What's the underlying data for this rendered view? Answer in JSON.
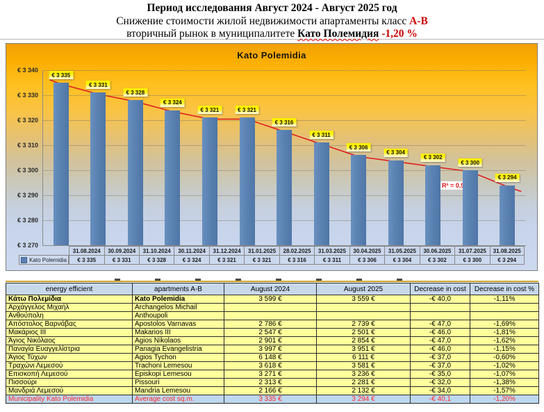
{
  "header": {
    "line1": "Период исследования Август 2024 - Август 2025 год",
    "line2_prefix": "Снижение стоимости жилой недвижимости апартаменты класс ",
    "line2_highlight": "А-В",
    "line3_prefix": "вторичный рынок в муниципалитете ",
    "line3_municipality": "Като Полемидия",
    "line3_change": " -1,20 %"
  },
  "chart_data": {
    "type": "bar",
    "title": "Kato Polemidia",
    "series_name": "Kato Polemidia",
    "categories": [
      "31.08.2024",
      "30.09.2024",
      "31.10.2024",
      "30.11.2024",
      "31.12.2024",
      "31.01.2025",
      "28.02.2025",
      "31.03.2025",
      "30.04.2025",
      "31.05.2025",
      "30.06.2025",
      "31.07.2025",
      "31.08.2025"
    ],
    "values": [
      3335,
      3331,
      3328,
      3324,
      3321,
      3321,
      3316,
      3311,
      3306,
      3304,
      3302,
      3300,
      3294
    ],
    "value_labels": [
      "€ 3 335",
      "€ 3 331",
      "€ 3 328",
      "€ 3 324",
      "€ 3 321",
      "€ 3 321",
      "€ 3 316",
      "€ 3 311",
      "€ 3 306",
      "€ 3 304",
      "€ 3 302",
      "€ 3 300",
      "€ 3 294"
    ],
    "ylim": [
      3270,
      3340
    ],
    "ytick_step": 10,
    "ytick_labels": [
      "€ 3 340",
      "€ 3 330",
      "€ 3 320",
      "€ 3 310",
      "€ 3 300",
      "€ 3 290",
      "€ 3 280",
      "€ 3 270"
    ],
    "grid": true,
    "legend_position": "data-table-left",
    "trendline_r2": "R² = 0,9936",
    "colors": {
      "bar": "#5B82B2",
      "trend": "#E02020",
      "label_bg": "#FFF200",
      "background_top": "#F1A007",
      "background_bottom": "#CCD9EE"
    }
  },
  "table": {
    "headers": [
      "energy efficient",
      "apartments A-B",
      "August 2024",
      "August 2025",
      "Decrease in cost",
      "Decrease in cost %"
    ],
    "rows": [
      [
        "Κάτω Πολεμίδια",
        "Kato Polemidia",
        "3 599 €",
        "3 559 €",
        "-€ 40,0",
        "-1,11%"
      ],
      [
        "Αρχάγγελος Μιχαήλ",
        "Archangelos Michail",
        "",
        "",
        "",
        ""
      ],
      [
        "Ανθούπολη",
        "Anthoupoli",
        "",
        "",
        "",
        ""
      ],
      [
        "Απόστολος Βαρνάβας",
        "Apostolos Varnavas",
        "2 786 €",
        "2 739 €",
        "-€ 47,0",
        "-1,69%"
      ],
      [
        "Μακάριος III",
        "Makarios III",
        "2 547 €",
        "2 501 €",
        "-€ 46,0",
        "-1,81%"
      ],
      [
        "Άγιος Νικόλαος",
        "Agios Nikolaos",
        "2 901 €",
        "2 854 €",
        "-€ 47,0",
        "-1,62%"
      ],
      [
        "Παναγία Ευαγγελίστρια",
        "Panagia Evangelistria",
        "3 997 €",
        "3 951 €",
        "-€ 46,0",
        "-1,15%"
      ],
      [
        "Άγιος Τύχων",
        "Agios Tychon",
        "6 148 €",
        "6 111 €",
        "-€ 37,0",
        "-0,60%"
      ],
      [
        "Τραχώνι Λεμεσού",
        "Trachoni Lemesou",
        "3 618 €",
        "3 581 €",
        "-€ 37,0",
        "-1,02%"
      ],
      [
        "Επισκοπή Λεμεσού",
        "Episkopi Lemesou",
        "3 271 €",
        "3 236 €",
        "-€ 35,0",
        "-1,07%"
      ],
      [
        "Πισσούρι",
        "Pissouri",
        "2 313 €",
        "2 281 €",
        "-€ 32,0",
        "-1,38%"
      ],
      [
        "Μανδριά Λεμεσού",
        "Mandria Lemesou",
        "2 166 €",
        "2 132 €",
        "-€ 34,0",
        "-1,57%"
      ]
    ],
    "footer": [
      "Municipality Kato Polemidia",
      "Average cost sq.m.",
      "3 335 €",
      "3 294 €",
      "-€ 40,1",
      "-1,20%"
    ]
  }
}
